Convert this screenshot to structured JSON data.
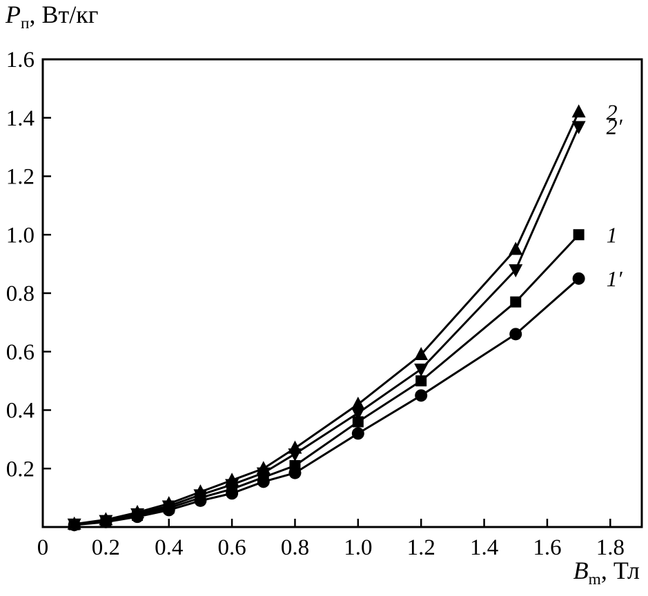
{
  "labels": {
    "y_var": "P",
    "y_sub": "п",
    "y_rest": ", Вт/кг",
    "x_var": "B",
    "x_sub": "m",
    "x_rest": ", Тл"
  },
  "chart_data": {
    "type": "line",
    "title": "",
    "xlabel": "Bm, Тл",
    "ylabel": "Pп, Вт/кг",
    "xlim": [
      0,
      1.9
    ],
    "ylim": [
      0,
      1.6
    ],
    "grid": false,
    "frame": true,
    "legend_position": "inline-right",
    "color": "#000000",
    "xtick_values": [
      0,
      0.2,
      0.4,
      0.6,
      0.8,
      1.0,
      1.2,
      1.4,
      1.6,
      1.8
    ],
    "xtick_labels": [
      "0",
      "0.2",
      "0.4",
      "0.6",
      "0.8",
      "1.0",
      "1.2",
      "1.4",
      "1.6",
      "1.8"
    ],
    "ytick_values": [
      0.2,
      0.4,
      0.6,
      0.8,
      1.0,
      1.2,
      1.4,
      1.6
    ],
    "ytick_labels": [
      "0.2",
      "0.4",
      "0.6",
      "0.8",
      "1.0",
      "1.2",
      "1.4",
      "1.6"
    ],
    "x": [
      0.1,
      0.2,
      0.3,
      0.4,
      0.5,
      0.6,
      0.7,
      0.8,
      1.0,
      1.2,
      1.5,
      1.7
    ],
    "series": [
      {
        "name": "2",
        "marker": "triangle-up",
        "values": [
          0.01,
          0.025,
          0.05,
          0.08,
          0.12,
          0.16,
          0.2,
          0.27,
          0.42,
          0.59,
          0.95,
          1.42
        ]
      },
      {
        "name": "2′",
        "marker": "triangle-down",
        "values": [
          0.01,
          0.022,
          0.045,
          0.072,
          0.11,
          0.145,
          0.185,
          0.25,
          0.39,
          0.54,
          0.88,
          1.37
        ]
      },
      {
        "name": "1",
        "marker": "square",
        "values": [
          0.008,
          0.02,
          0.04,
          0.065,
          0.1,
          0.13,
          0.17,
          0.21,
          0.36,
          0.5,
          0.77,
          1.0
        ]
      },
      {
        "name": "1′",
        "marker": "circle",
        "values": [
          0.007,
          0.017,
          0.035,
          0.058,
          0.09,
          0.115,
          0.155,
          0.185,
          0.32,
          0.45,
          0.66,
          0.85
        ]
      }
    ]
  }
}
